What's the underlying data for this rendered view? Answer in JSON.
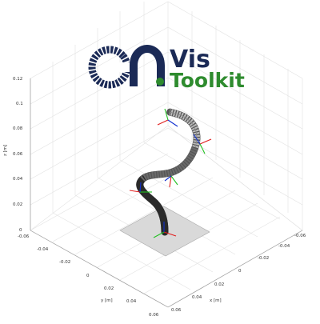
{
  "logo": {
    "line1": "Vis",
    "line2": "Toolkit",
    "navy": "#1b2a56",
    "green": "#2e8b2e"
  },
  "axes": {
    "z_label": "z [m]",
    "y_label": "y [m]",
    "x_label": "x [m]",
    "z_ticks": [
      "0.12",
      "0.1",
      "0.08",
      "0.06",
      "0.04",
      "0.02",
      "0"
    ],
    "y_ticks": [
      "-0.06",
      "-0.04",
      "-0.02",
      "0",
      "0.02",
      "0.04",
      "0.06"
    ],
    "x_ticks": [
      "0.06",
      "0.04",
      "0.02",
      "0",
      "-0.02",
      "-0.04",
      "-0.06"
    ]
  },
  "colors": {
    "frame_red": "#e02020",
    "frame_green": "#22c022",
    "frame_blue": "#1030d0",
    "robot_dark": "#2a2a2a",
    "robot_light": "#c8c8c8",
    "base_plate": "#d9d9d9"
  }
}
